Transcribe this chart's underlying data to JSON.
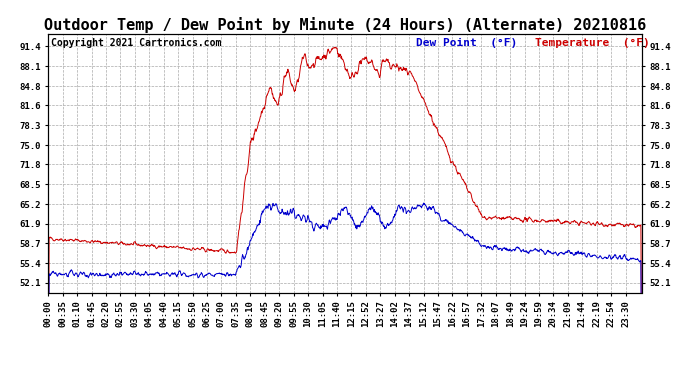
{
  "title": "Outdoor Temp / Dew Point by Minute (24 Hours) (Alternate) 20210816",
  "copyright": "Copyright 2021 Cartronics.com",
  "legend_dew": "Dew Point  (°F)",
  "legend_temp": "Temperature  (°F)",
  "yticks": [
    52.1,
    55.4,
    58.7,
    61.9,
    65.2,
    68.5,
    71.8,
    75.0,
    78.3,
    81.6,
    84.8,
    88.1,
    91.4
  ],
  "ylim": [
    50.5,
    93.5
  ],
  "xlim": [
    0,
    1439
  ],
  "temp_color": "#cc0000",
  "dew_color": "#0000cc",
  "background_color": "#ffffff",
  "grid_color": "#aaaaaa",
  "title_fontsize": 11,
  "copyright_fontsize": 7,
  "legend_fontsize": 8,
  "tick_fontsize": 6.5,
  "xtick_labels": [
    "00:00",
    "00:35",
    "01:10",
    "01:45",
    "02:20",
    "02:55",
    "03:30",
    "04:05",
    "04:40",
    "05:15",
    "05:50",
    "06:25",
    "07:00",
    "07:35",
    "08:10",
    "08:45",
    "09:20",
    "09:55",
    "10:30",
    "11:05",
    "11:40",
    "12:15",
    "12:52",
    "13:27",
    "14:02",
    "14:37",
    "15:12",
    "15:47",
    "16:22",
    "16:57",
    "17:32",
    "18:07",
    "18:49",
    "19:24",
    "19:59",
    "20:34",
    "21:09",
    "21:44",
    "22:19",
    "22:54",
    "23:30"
  ]
}
